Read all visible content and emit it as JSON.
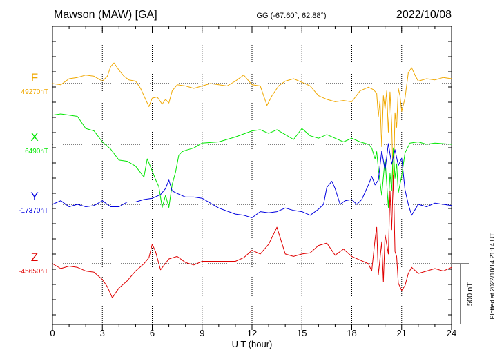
{
  "header": {
    "station": "Mawson (MAW)  [GA]",
    "coords": "GG (-67.60°,  62.88°)",
    "date": "2022/10/08"
  },
  "footer": {
    "plotted": "Plotted at 2022/10/14 21:14 UT"
  },
  "chart_data": {
    "type": "line",
    "title": "Mawson (MAW)  [GA]",
    "xlabel": "U T (hour)",
    "ylabel": "",
    "xlim": [
      0,
      24
    ],
    "x_ticks": [
      "0",
      "3",
      "6",
      "9",
      "12",
      "15",
      "18",
      "21",
      "24"
    ],
    "grid": true,
    "scale_bar": {
      "label": "500 nT",
      "value_nT": 500
    },
    "series": [
      {
        "name": "F",
        "baseline_label": "49270nT",
        "baseline_nT": 49270,
        "color": "#f0a800",
        "points": [
          [
            0,
            0
          ],
          [
            0.5,
            -10
          ],
          [
            1,
            40
          ],
          [
            1.5,
            50
          ],
          [
            2,
            70
          ],
          [
            2.5,
            60
          ],
          [
            3,
            20
          ],
          [
            3.3,
            60
          ],
          [
            3.5,
            140
          ],
          [
            3.7,
            170
          ],
          [
            4,
            110
          ],
          [
            4.3,
            60
          ],
          [
            4.6,
            30
          ],
          [
            5,
            20
          ],
          [
            5.3,
            -40
          ],
          [
            5.6,
            -130
          ],
          [
            5.8,
            -190
          ],
          [
            6,
            -120
          ],
          [
            6.3,
            -110
          ],
          [
            6.6,
            -170
          ],
          [
            6.8,
            -130
          ],
          [
            7,
            -160
          ],
          [
            7.2,
            -60
          ],
          [
            7.5,
            -10
          ],
          [
            8,
            -20
          ],
          [
            8.5,
            -40
          ],
          [
            9,
            -20
          ],
          [
            9.5,
            0
          ],
          [
            10,
            -10
          ],
          [
            10.5,
            -20
          ],
          [
            11,
            20
          ],
          [
            11.5,
            70
          ],
          [
            12,
            -10
          ],
          [
            12.5,
            -20
          ],
          [
            12.9,
            -180
          ],
          [
            13.2,
            -100
          ],
          [
            13.6,
            -20
          ],
          [
            14,
            20
          ],
          [
            14.5,
            40
          ],
          [
            15,
            10
          ],
          [
            15.5,
            -20
          ],
          [
            16,
            -100
          ],
          [
            16.5,
            -130
          ],
          [
            17,
            -150
          ],
          [
            17.5,
            -140
          ],
          [
            18,
            -150
          ],
          [
            18.5,
            -60
          ],
          [
            19,
            -30
          ],
          [
            19.3,
            -50
          ],
          [
            19.5,
            -80
          ],
          [
            19.6,
            -270
          ],
          [
            19.7,
            -140
          ],
          [
            19.8,
            -520
          ],
          [
            19.9,
            -100
          ],
          [
            20,
            -210
          ],
          [
            20.1,
            -60
          ],
          [
            20.2,
            -400
          ],
          [
            20.3,
            -70
          ],
          [
            20.4,
            -330
          ],
          [
            20.5,
            -880
          ],
          [
            20.6,
            -240
          ],
          [
            20.7,
            -360
          ],
          [
            20.8,
            -40
          ],
          [
            20.9,
            -100
          ],
          [
            21,
            -230
          ],
          [
            21.2,
            -120
          ],
          [
            21.4,
            90
          ],
          [
            21.6,
            130
          ],
          [
            21.8,
            70
          ],
          [
            22,
            20
          ],
          [
            22.5,
            40
          ],
          [
            23,
            30
          ],
          [
            23.5,
            50
          ],
          [
            24,
            40
          ]
        ]
      },
      {
        "name": "X",
        "baseline_label": "6490nT",
        "baseline_nT": 6490,
        "color": "#00e600",
        "points": [
          [
            0,
            240
          ],
          [
            0.5,
            250
          ],
          [
            1,
            240
          ],
          [
            1.5,
            230
          ],
          [
            2,
            130
          ],
          [
            2.5,
            110
          ],
          [
            3,
            20
          ],
          [
            3.5,
            -40
          ],
          [
            4,
            -130
          ],
          [
            4.5,
            -140
          ],
          [
            5,
            -180
          ],
          [
            5.5,
            -270
          ],
          [
            5.7,
            -120
          ],
          [
            6,
            -220
          ],
          [
            6.2,
            -290
          ],
          [
            6.4,
            -350
          ],
          [
            6.6,
            -520
          ],
          [
            6.8,
            -420
          ],
          [
            7,
            -520
          ],
          [
            7.2,
            -330
          ],
          [
            7.4,
            -230
          ],
          [
            7.6,
            -90
          ],
          [
            7.8,
            -60
          ],
          [
            8,
            -50
          ],
          [
            8.5,
            -30
          ],
          [
            9,
            10
          ],
          [
            10,
            20
          ],
          [
            11,
            60
          ],
          [
            12,
            110
          ],
          [
            12.5,
            120
          ],
          [
            13,
            90
          ],
          [
            13.5,
            120
          ],
          [
            14,
            80
          ],
          [
            14.5,
            40
          ],
          [
            15,
            130
          ],
          [
            15.5,
            70
          ],
          [
            16,
            50
          ],
          [
            16.5,
            80
          ],
          [
            17,
            50
          ],
          [
            17.5,
            20
          ],
          [
            18,
            50
          ],
          [
            18.5,
            20
          ],
          [
            19,
            0
          ],
          [
            19.2,
            -30
          ],
          [
            19.4,
            -120
          ],
          [
            19.5,
            -60
          ],
          [
            19.6,
            -200
          ],
          [
            19.8,
            -420
          ],
          [
            20,
            -120
          ],
          [
            20.2,
            -520
          ],
          [
            20.3,
            -240
          ],
          [
            20.4,
            -380
          ],
          [
            20.5,
            -30
          ],
          [
            20.6,
            -280
          ],
          [
            20.7,
            -160
          ],
          [
            20.8,
            -400
          ],
          [
            21,
            -260
          ],
          [
            21.2,
            -70
          ],
          [
            21.5,
            10
          ],
          [
            22,
            20
          ],
          [
            22.5,
            0
          ],
          [
            23,
            10
          ],
          [
            24,
            0
          ]
        ]
      },
      {
        "name": "Y",
        "baseline_label": "-17370nT",
        "baseline_nT": -17370,
        "color": "#0000e0",
        "points": [
          [
            0,
            0
          ],
          [
            0.5,
            30
          ],
          [
            1,
            -20
          ],
          [
            1.5,
            0
          ],
          [
            2,
            -20
          ],
          [
            2.5,
            -10
          ],
          [
            3,
            30
          ],
          [
            3.5,
            -20
          ],
          [
            4,
            -20
          ],
          [
            4.5,
            20
          ],
          [
            5,
            20
          ],
          [
            5.5,
            40
          ],
          [
            6,
            50
          ],
          [
            6.5,
            80
          ],
          [
            6.8,
            130
          ],
          [
            7,
            200
          ],
          [
            7.2,
            110
          ],
          [
            7.5,
            90
          ],
          [
            8,
            60
          ],
          [
            8.5,
            60
          ],
          [
            9,
            50
          ],
          [
            10,
            -30
          ],
          [
            11,
            -80
          ],
          [
            11.5,
            -90
          ],
          [
            12,
            -110
          ],
          [
            12.5,
            -60
          ],
          [
            13,
            -70
          ],
          [
            13.5,
            -60
          ],
          [
            14,
            -30
          ],
          [
            14.5,
            -50
          ],
          [
            15,
            -60
          ],
          [
            15.5,
            -90
          ],
          [
            16,
            -40
          ],
          [
            16.3,
            0
          ],
          [
            16.5,
            140
          ],
          [
            16.8,
            190
          ],
          [
            17,
            130
          ],
          [
            17.3,
            0
          ],
          [
            17.6,
            30
          ],
          [
            18,
            40
          ],
          [
            18.3,
            0
          ],
          [
            18.6,
            40
          ],
          [
            19,
            160
          ],
          [
            19.2,
            230
          ],
          [
            19.4,
            160
          ],
          [
            19.6,
            200
          ],
          [
            19.8,
            440
          ],
          [
            20,
            280
          ],
          [
            20.2,
            500
          ],
          [
            20.4,
            330
          ],
          [
            20.6,
            450
          ],
          [
            20.8,
            320
          ],
          [
            21,
            380
          ],
          [
            21.2,
            120
          ],
          [
            21.4,
            0
          ],
          [
            21.6,
            -90
          ],
          [
            22,
            0
          ],
          [
            22.5,
            -20
          ],
          [
            23,
            10
          ],
          [
            24,
            -10
          ]
        ]
      },
      {
        "name": "Z",
        "baseline_label": "-45650nT",
        "baseline_nT": -45650,
        "color": "#e00000",
        "points": [
          [
            0,
            0
          ],
          [
            0.5,
            -40
          ],
          [
            1,
            -20
          ],
          [
            1.5,
            -30
          ],
          [
            2,
            -60
          ],
          [
            2.5,
            -70
          ],
          [
            3,
            -130
          ],
          [
            3.3,
            -190
          ],
          [
            3.6,
            -280
          ],
          [
            4,
            -200
          ],
          [
            4.5,
            -140
          ],
          [
            5,
            -60
          ],
          [
            5.5,
            0
          ],
          [
            5.8,
            50
          ],
          [
            6,
            160
          ],
          [
            6.2,
            100
          ],
          [
            6.5,
            -50
          ],
          [
            7,
            40
          ],
          [
            7.5,
            60
          ],
          [
            8,
            10
          ],
          [
            8.5,
            -10
          ],
          [
            9,
            20
          ],
          [
            10,
            20
          ],
          [
            11,
            20
          ],
          [
            11.5,
            50
          ],
          [
            12,
            110
          ],
          [
            12.5,
            80
          ],
          [
            13,
            160
          ],
          [
            13.5,
            300
          ],
          [
            14,
            80
          ],
          [
            14.5,
            60
          ],
          [
            15,
            80
          ],
          [
            15.5,
            90
          ],
          [
            16,
            150
          ],
          [
            16.5,
            170
          ],
          [
            17,
            70
          ],
          [
            17.5,
            120
          ],
          [
            18,
            60
          ],
          [
            18.5,
            30
          ],
          [
            19,
            0
          ],
          [
            19.2,
            -60
          ],
          [
            19.4,
            200
          ],
          [
            19.5,
            300
          ],
          [
            19.6,
            -90
          ],
          [
            19.8,
            180
          ],
          [
            19.9,
            -150
          ],
          [
            20,
            240
          ],
          [
            20.2,
            80
          ],
          [
            20.3,
            600
          ],
          [
            20.4,
            280
          ],
          [
            20.5,
            730
          ],
          [
            20.6,
            100
          ],
          [
            20.7,
            60
          ],
          [
            20.8,
            -160
          ],
          [
            21,
            -220
          ],
          [
            21.2,
            -180
          ],
          [
            21.4,
            -80
          ],
          [
            21.6,
            -30
          ],
          [
            22,
            -80
          ],
          [
            22.5,
            -60
          ],
          [
            23,
            -40
          ],
          [
            23.5,
            -60
          ],
          [
            24,
            -30
          ]
        ]
      }
    ]
  }
}
